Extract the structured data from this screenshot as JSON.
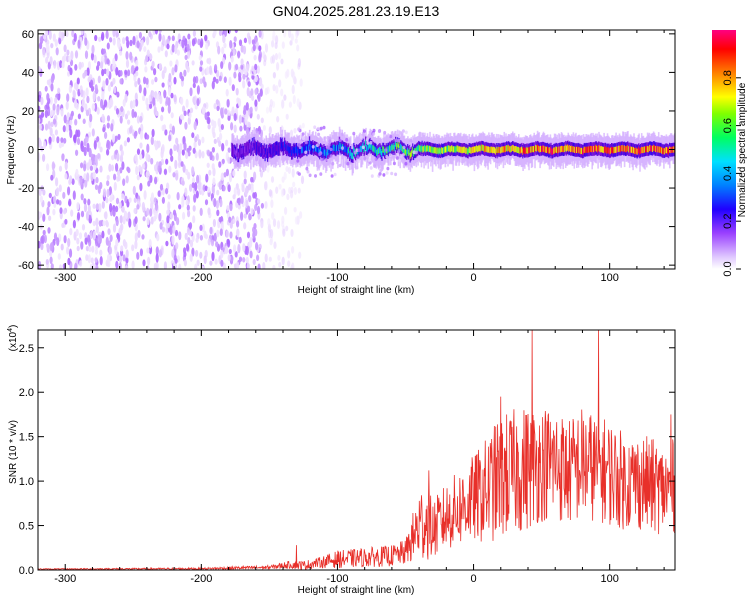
{
  "figure": {
    "title": "GN04.2025.281.23.19.E13"
  },
  "chart_data": [
    {
      "type": "heatmap",
      "title": "GN04.2025.281.23.19.E13",
      "xlabel": "Height of straight line (km)",
      "ylabel": "Frequency (Hz)",
      "xlim": [
        -320,
        148
      ],
      "ylim": [
        -62,
        62
      ],
      "xticks": [
        -300,
        -200,
        -100,
        0,
        100
      ],
      "xtick_labels": [
        "-300",
        "-200",
        "-100",
        "0",
        "100"
      ],
      "yticks": [
        60,
        40,
        20,
        0,
        -20,
        -40,
        -60
      ],
      "ytick_labels": [
        "60",
        "40",
        "20",
        "0",
        "-20",
        "-40",
        "-60"
      ],
      "colorbar": {
        "label": "Normalized spectral amplitude",
        "range": [
          0,
          1
        ],
        "ticks": [
          0.0,
          0.2,
          0.4,
          0.6,
          0.8
        ],
        "tick_labels": [
          "0.0",
          "0.2",
          "0.4",
          "0.6",
          "0.8"
        ],
        "colormap": [
          "#ffffff",
          "#e8d4ff",
          "#a050ff",
          "#6a00d0",
          "#0000ff",
          "#00c8ff",
          "#00ff80",
          "#a0ff00",
          "#ffff00",
          "#ff8000",
          "#ff0000",
          "#ff0080"
        ]
      },
      "features": [
        {
          "region": "noise",
          "x_range": [
            -320,
            -155
          ],
          "freq_range": [
            -62,
            62
          ],
          "amplitude": 0.1
        },
        {
          "region": "sparse_noise",
          "x_range": [
            -155,
            -125
          ],
          "freq_range": [
            -62,
            62
          ],
          "amplitude": 0.05
        },
        {
          "region": "signal_band",
          "x_range": [
            -178,
            148
          ],
          "center_freq": 0,
          "amplitude_start": 0.25,
          "amplitude_end": 0.9
        }
      ]
    },
    {
      "type": "line",
      "xlabel": "Height of straight line (km)",
      "ylabel": "SNR (10 * v/v)",
      "y_multiplier": "(x10",
      "y_multiplier_exp": "4",
      "xlim": [
        -320,
        148
      ],
      "ylim": [
        0,
        2.7
      ],
      "xticks": [
        -300,
        -200,
        -100,
        0,
        100
      ],
      "xtick_labels": [
        "-300",
        "-200",
        "-100",
        "0",
        "100"
      ],
      "yticks": [
        0,
        0.5,
        1.0,
        1.5,
        2.0,
        2.5
      ],
      "ytick_labels": [
        "0.0",
        "0.5",
        "1.0",
        "1.5",
        "2.0",
        "2.5"
      ],
      "color": "#e8302a",
      "envelope": {
        "x": [
          -320,
          -200,
          -150,
          -135,
          -125,
          -115,
          -100,
          -80,
          -60,
          -50,
          -45,
          -40,
          -35,
          -30,
          -20,
          -10,
          0,
          10,
          20,
          30,
          40,
          50,
          60,
          70,
          80,
          90,
          100,
          110,
          120,
          130,
          140,
          148
        ],
        "mean": [
          0.01,
          0.015,
          0.03,
          0.06,
          0.05,
          0.08,
          0.12,
          0.14,
          0.16,
          0.2,
          0.35,
          0.5,
          0.55,
          0.45,
          0.6,
          0.7,
          0.8,
          0.9,
          1.05,
          1.1,
          1.15,
          1.2,
          1.2,
          1.1,
          1.2,
          1.15,
          1.1,
          1.0,
          1.0,
          0.95,
          0.9,
          0.95
        ],
        "spread": [
          0.005,
          0.01,
          0.02,
          0.04,
          0.05,
          0.05,
          0.09,
          0.1,
          0.11,
          0.13,
          0.25,
          0.4,
          0.4,
          0.3,
          0.35,
          0.4,
          0.45,
          0.55,
          0.65,
          0.65,
          0.65,
          0.6,
          0.6,
          0.55,
          0.6,
          0.55,
          0.55,
          0.5,
          0.5,
          0.5,
          0.45,
          0.5
        ]
      },
      "peaks": [
        {
          "x": -130,
          "y": 0.28
        },
        {
          "x": -33,
          "y": 1.12
        },
        {
          "x": 20,
          "y": 1.95
        },
        {
          "x": 43,
          "y": 2.7
        },
        {
          "x": 92,
          "y": 2.7
        },
        {
          "x": 145,
          "y": 1.75
        }
      ]
    }
  ]
}
